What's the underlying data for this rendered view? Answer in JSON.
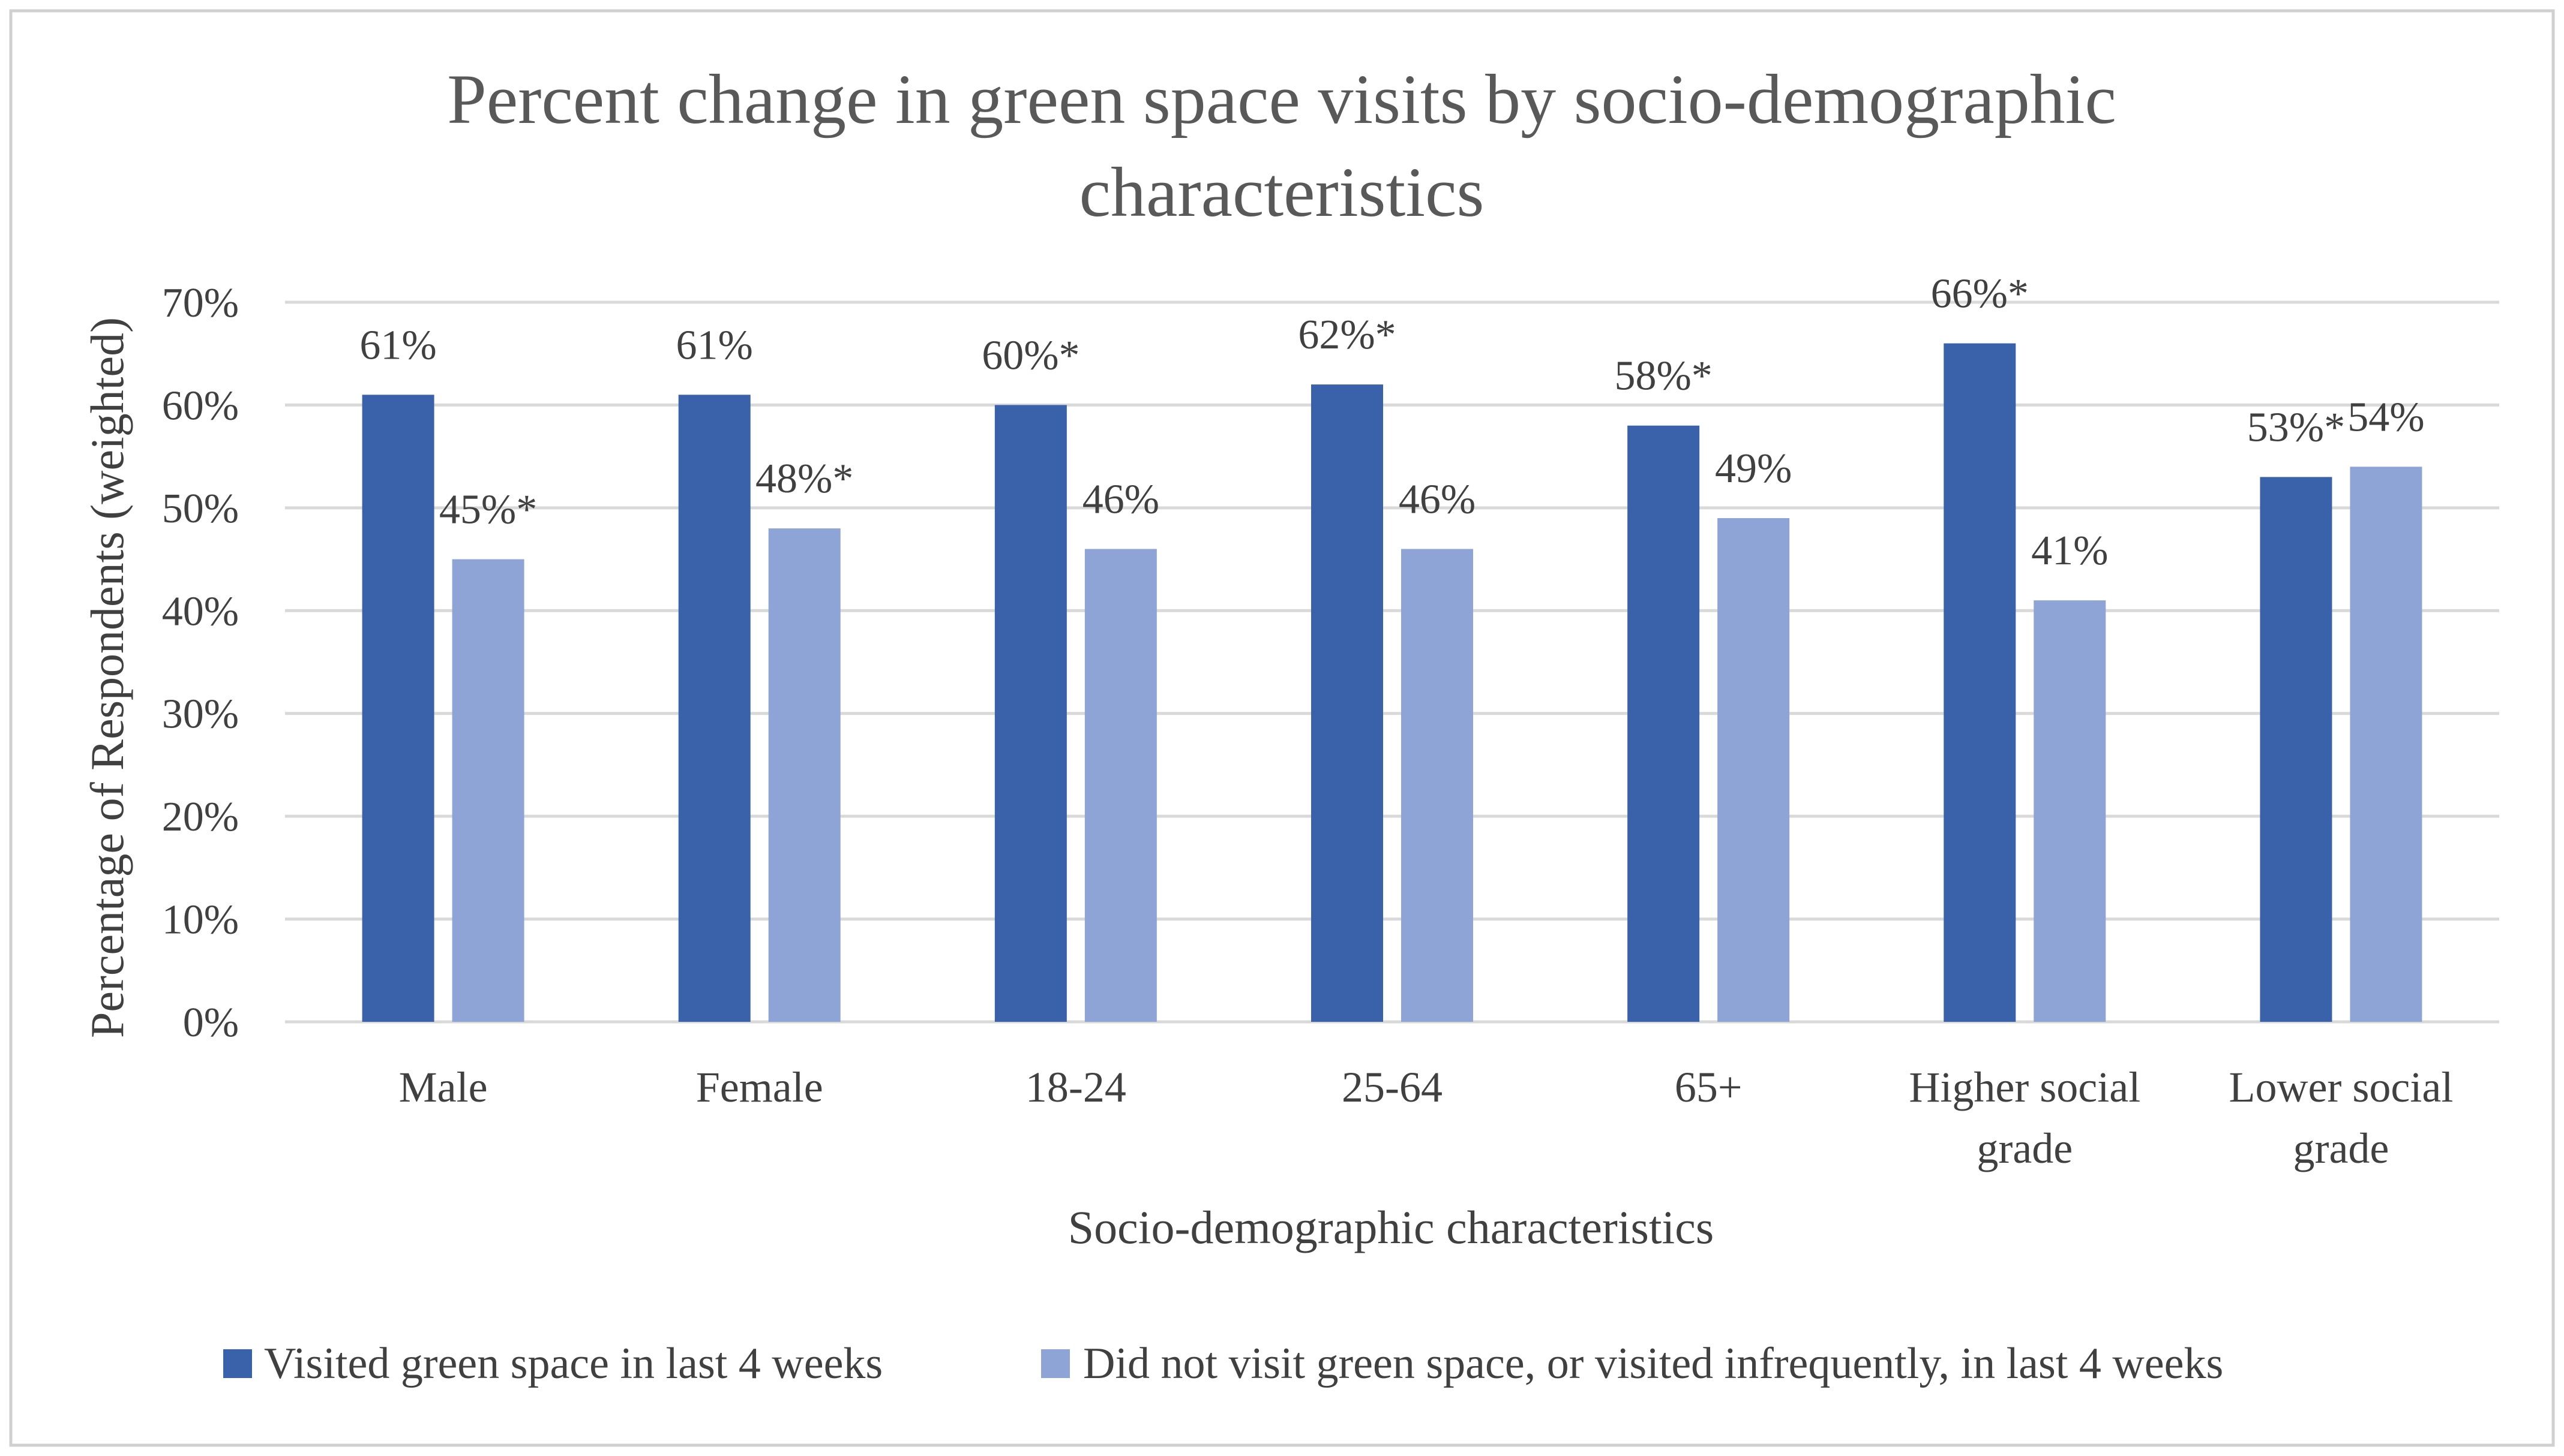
{
  "chart_data": {
    "type": "bar",
    "title": "Percent change in green space visits by socio-demographic characteristics",
    "title_lines": [
      "Percent change in green space visits by socio-demographic",
      "characteristics"
    ],
    "xlabel": "Socio-demographic characteristics",
    "ylabel": "Percentage of Respondents (weighted)",
    "ylim": [
      0,
      70
    ],
    "yticks": [
      0,
      10,
      20,
      30,
      40,
      50,
      60,
      70
    ],
    "ytick_labels": [
      "0%",
      "10%",
      "20%",
      "30%",
      "40%",
      "50%",
      "60%",
      "70%"
    ],
    "grid": true,
    "legend_position": "bottom",
    "categories": [
      "Male",
      "Female",
      "18-24",
      "25-64",
      "65+",
      "Higher social grade",
      "Lower social grade"
    ],
    "category_lines": [
      [
        "Male"
      ],
      [
        "Female"
      ],
      [
        "18-24"
      ],
      [
        "25-64"
      ],
      [
        "65+"
      ],
      [
        "Higher social",
        "grade"
      ],
      [
        "Lower social",
        "grade"
      ]
    ],
    "series": [
      {
        "name": "Visited green space in last 4 weeks",
        "color": "#3a62ab",
        "values": [
          61,
          61,
          60,
          62,
          58,
          66,
          53
        ],
        "labels": [
          "61%",
          "61%",
          "60%*",
          "62%*",
          "58%*",
          "66%*",
          "53%*"
        ]
      },
      {
        "name": "Did not visit green space, or visited infrequently, in last 4 weeks",
        "color": "#8fa4d6",
        "values": [
          45,
          48,
          46,
          46,
          49,
          41,
          54
        ],
        "labels": [
          "45%*",
          "48%*",
          "46%",
          "46%",
          "49%",
          "41%",
          "54%"
        ]
      }
    ]
  }
}
